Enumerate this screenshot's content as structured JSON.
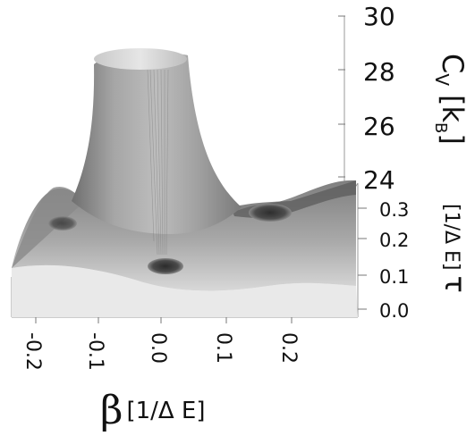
{
  "chart_data": {
    "type": "surface3d",
    "title": "",
    "xlabel": {
      "symbol": "β",
      "unit": "[1/Δ E]"
    },
    "ylabel": {
      "symbol": "τ",
      "unit": "[1/Δ E]"
    },
    "zlabel": {
      "symbol": "C",
      "subscript": "V",
      "unit_prefix": "[k",
      "unit_sub": "B",
      "unit_suffix": "]"
    },
    "x_ticks": [
      "-0.2",
      "-0.1",
      "0.0",
      "0.1",
      "0.2"
    ],
    "y_ticks": [
      "0.0",
      "0.1",
      "0.2",
      "0.3"
    ],
    "z_ticks": [
      "24",
      "26",
      "28",
      "30"
    ],
    "xlim": [
      -0.25,
      0.25
    ],
    "ylim": [
      0.0,
      0.35
    ],
    "zlim": [
      23.4,
      30
    ],
    "peak": {
      "beta": 0.0,
      "tau": 0.32,
      "cv": 29.4,
      "plateau_cut": true
    },
    "dips": [
      {
        "beta": 0.0,
        "tau": 0.12,
        "cv": 23.4
      },
      {
        "beta": 0.18,
        "tau": 0.35,
        "cv": 23.4
      },
      {
        "beta": -0.2,
        "tau": 0.33,
        "cv": 23.8
      }
    ],
    "surface_color": "#9a9a9a",
    "grid": false
  }
}
